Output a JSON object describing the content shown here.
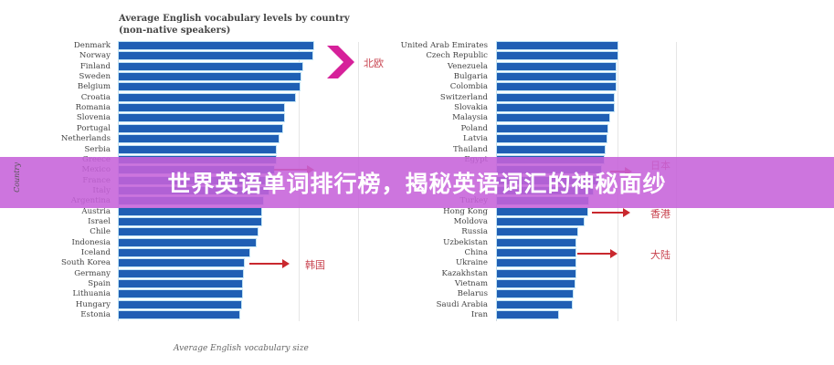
{
  "banner": {
    "text": "世界英语单词排行榜，揭秘英语词汇的神秘面纱",
    "color": "#c662da"
  },
  "chart_data": {
    "type": "bar",
    "orientation": "horizontal",
    "title": "Average English vocabulary levels by country (non-native speakers)",
    "xlabel": "Average English vocabulary size",
    "ylabel": "Country",
    "bar_color": "#1f5fb4",
    "grid": true,
    "note": "No numeric axis ticks visible; values are relative bar lengths (top bar of each panel = 100)",
    "panels": [
      {
        "categories": [
          "Denmark",
          "Norway",
          "Finland",
          "Sweden",
          "Belgium",
          "Croatia",
          "Romania",
          "Slovenia",
          "Portugal",
          "Netherlands",
          "Serbia",
          "Greece",
          "Mexico",
          "France",
          "Italy",
          "Argentina",
          "Austria",
          "Israel",
          "Chile",
          "Indonesia",
          "Iceland",
          "South Korea",
          "Germany",
          "Spain",
          "Lithuania",
          "Hungary",
          "Estonia"
        ],
        "values": [
          100,
          99.5,
          94.4,
          93.4,
          93,
          90.6,
          85,
          85,
          84,
          82.2,
          80.8,
          80.8,
          79.8,
          78.4,
          77,
          74.2,
          73.2,
          73.2,
          71.4,
          70.4,
          67.1,
          64.3,
          63.8,
          63.4,
          63.4,
          62.9,
          62
        ],
        "annotations": [
          {
            "text": "北欧",
            "marker": "chevron",
            "color": "#d6219a",
            "target": "Denmark–Belgium"
          },
          {
            "text": "韩国",
            "marker": "arrow",
            "color": "#c9282e",
            "target": "South Korea"
          }
        ]
      },
      {
        "categories": [
          "United Arab Emirates",
          "Czech Republic",
          "Venezuela",
          "Bulgaria",
          "Colombia",
          "Switzerland",
          "Slovakia",
          "Malaysia",
          "Poland",
          "Latvia",
          "Thailand",
          "Egypt",
          "",
          "",
          "",
          "Turkey",
          "Hong Kong",
          "Moldova",
          "Russia",
          "Uzbekistan",
          "China",
          "Ukraine",
          "Kazakhstan",
          "Vietnam",
          "Belarus",
          "Saudi Arabia",
          "Iran"
        ],
        "values": [
          100,
          100,
          98.5,
          98.5,
          98.5,
          97,
          97,
          93.2,
          91.7,
          90.9,
          89.4,
          88.6,
          86.4,
          84.8,
          79.5,
          75.8,
          75,
          72,
          66.7,
          65.2,
          65.2,
          65.2,
          65.2,
          64.4,
          62.9,
          62.1,
          50.8
        ],
        "annotations": [
          {
            "text": "日本",
            "marker": "arrow",
            "color": "#c9282e"
          },
          {
            "text": "香港",
            "marker": "arrow",
            "color": "#c9282e",
            "target": "Hong Kong"
          },
          {
            "text": "大陆",
            "marker": "arrow",
            "color": "#c9282e",
            "target": "China"
          }
        ]
      }
    ]
  }
}
